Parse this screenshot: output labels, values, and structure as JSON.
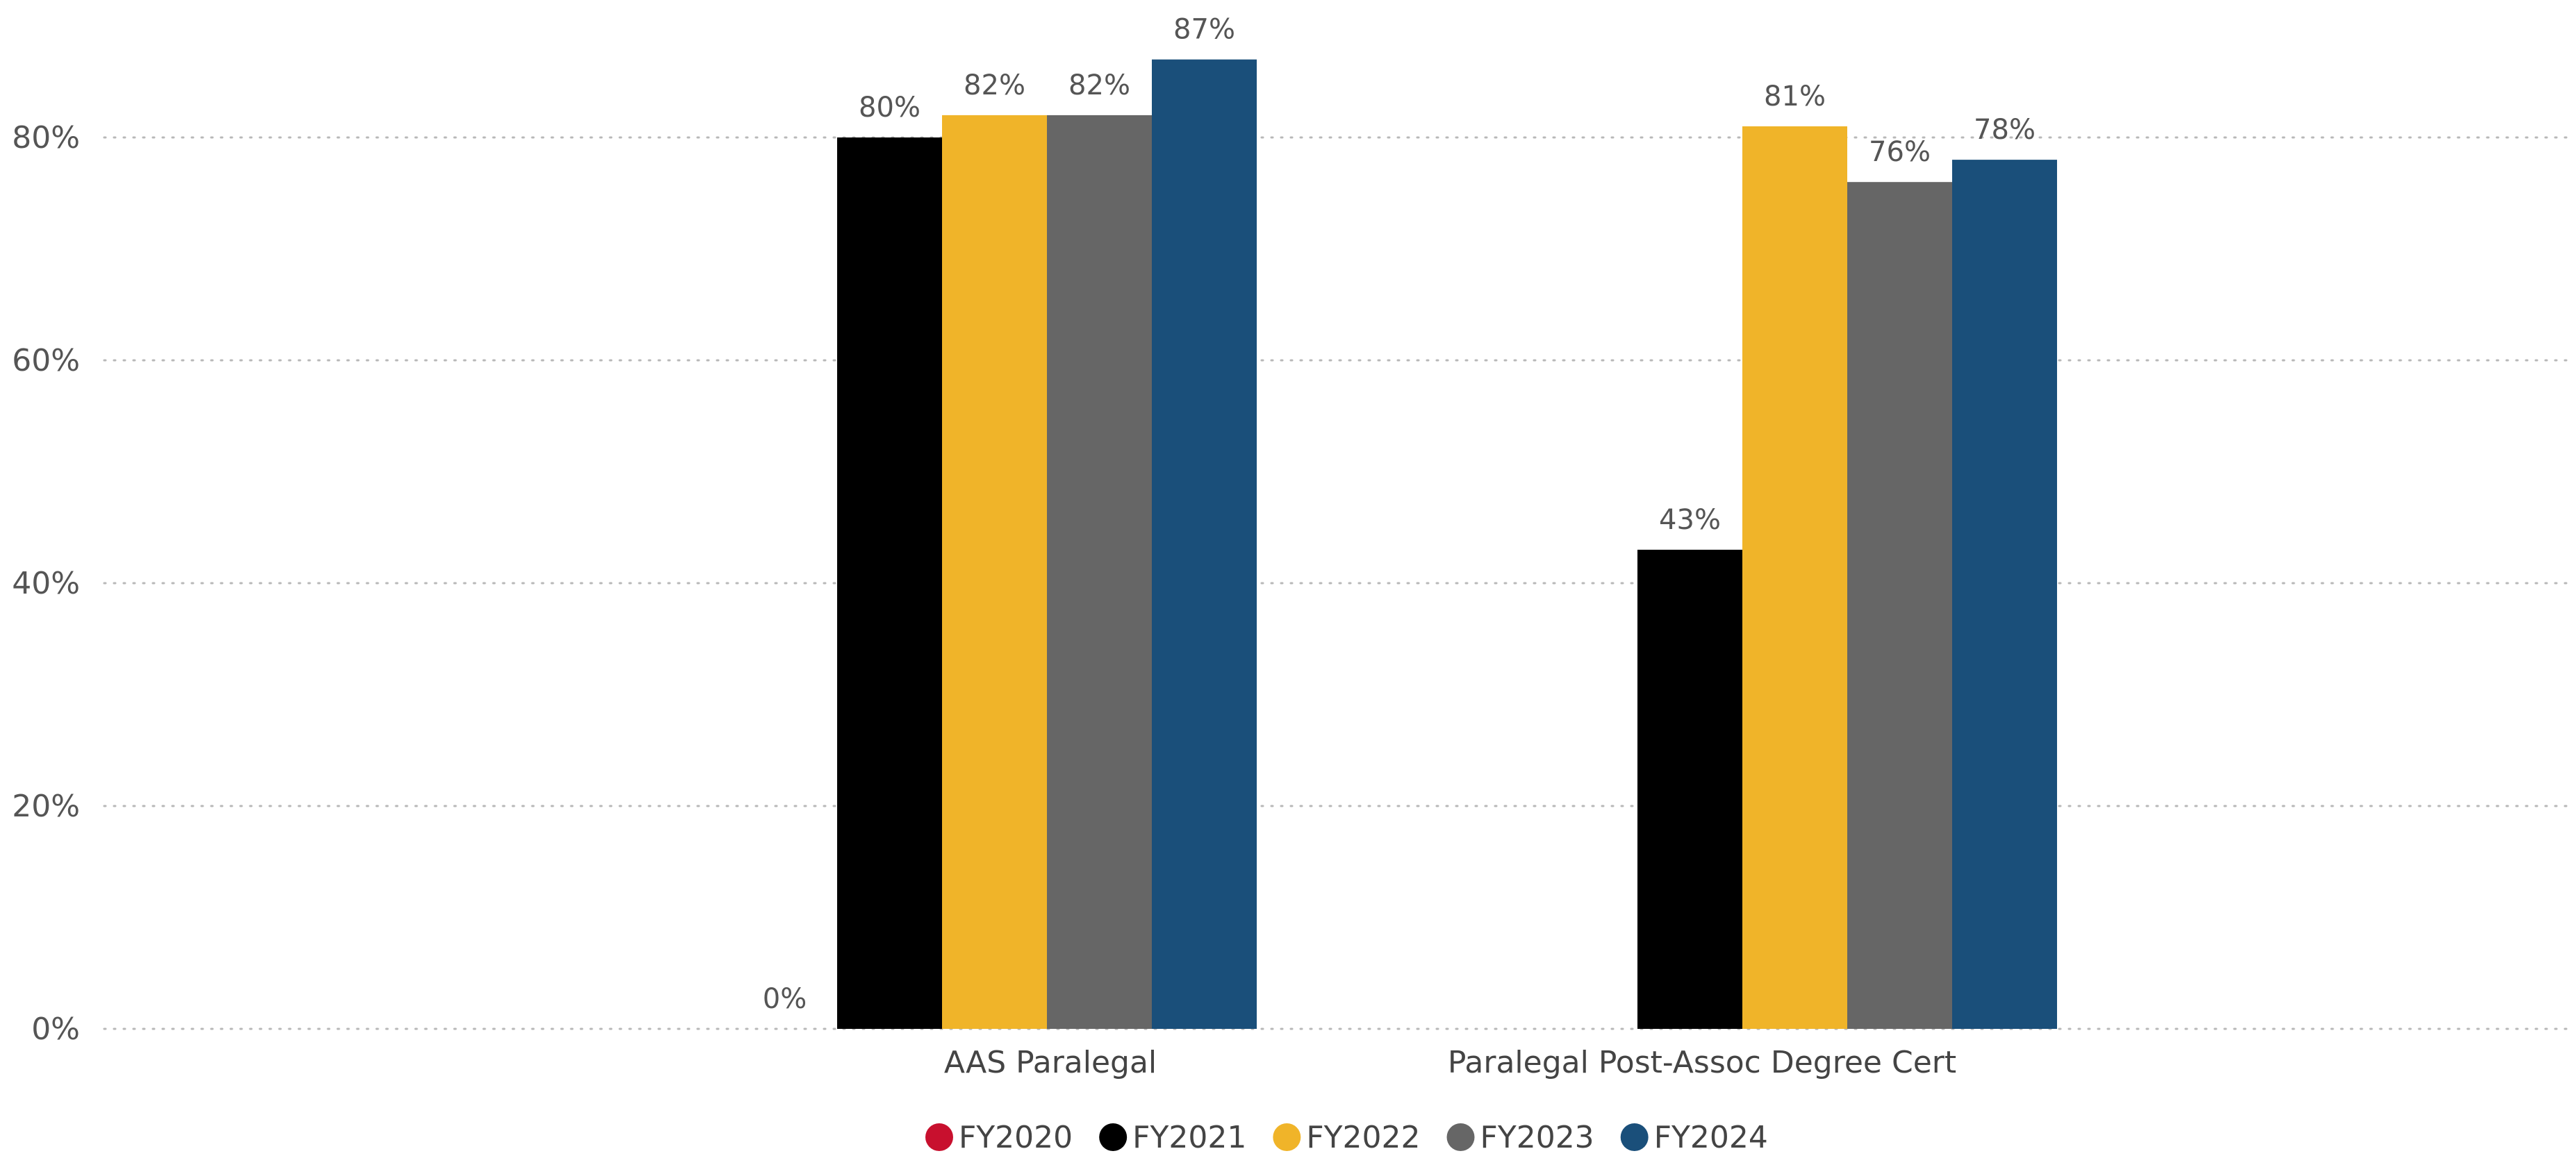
{
  "chart_data": {
    "type": "bar",
    "categories": [
      "AAS Paralegal",
      "Paralegal Post-Assoc Degree Cert"
    ],
    "series": [
      {
        "name": "FY2020",
        "color": "#c8102e",
        "values": [
          0,
          null
        ],
        "labels": [
          "0%",
          ""
        ]
      },
      {
        "name": "FY2021",
        "color": "#000000",
        "values": [
          80,
          43
        ],
        "labels": [
          "80%",
          "43%"
        ]
      },
      {
        "name": "FY2022",
        "color": "#f0b429",
        "values": [
          82,
          81
        ],
        "labels": [
          "82%",
          "81%"
        ]
      },
      {
        "name": "FY2023",
        "color": "#666666",
        "values": [
          82,
          76
        ],
        "labels": [
          "82%",
          "76%"
        ]
      },
      {
        "name": "FY2024",
        "color": "#1a4f7a",
        "values": [
          87,
          78
        ],
        "labels": [
          "87%",
          "78%"
        ]
      }
    ],
    "ylim": [
      0,
      87
    ],
    "yticks": [
      0,
      20,
      40,
      60,
      80
    ],
    "ytick_labels": [
      "0%",
      "20%",
      "40%",
      "60%",
      "80%"
    ],
    "grid": true,
    "legend_position": "bottom-center"
  }
}
